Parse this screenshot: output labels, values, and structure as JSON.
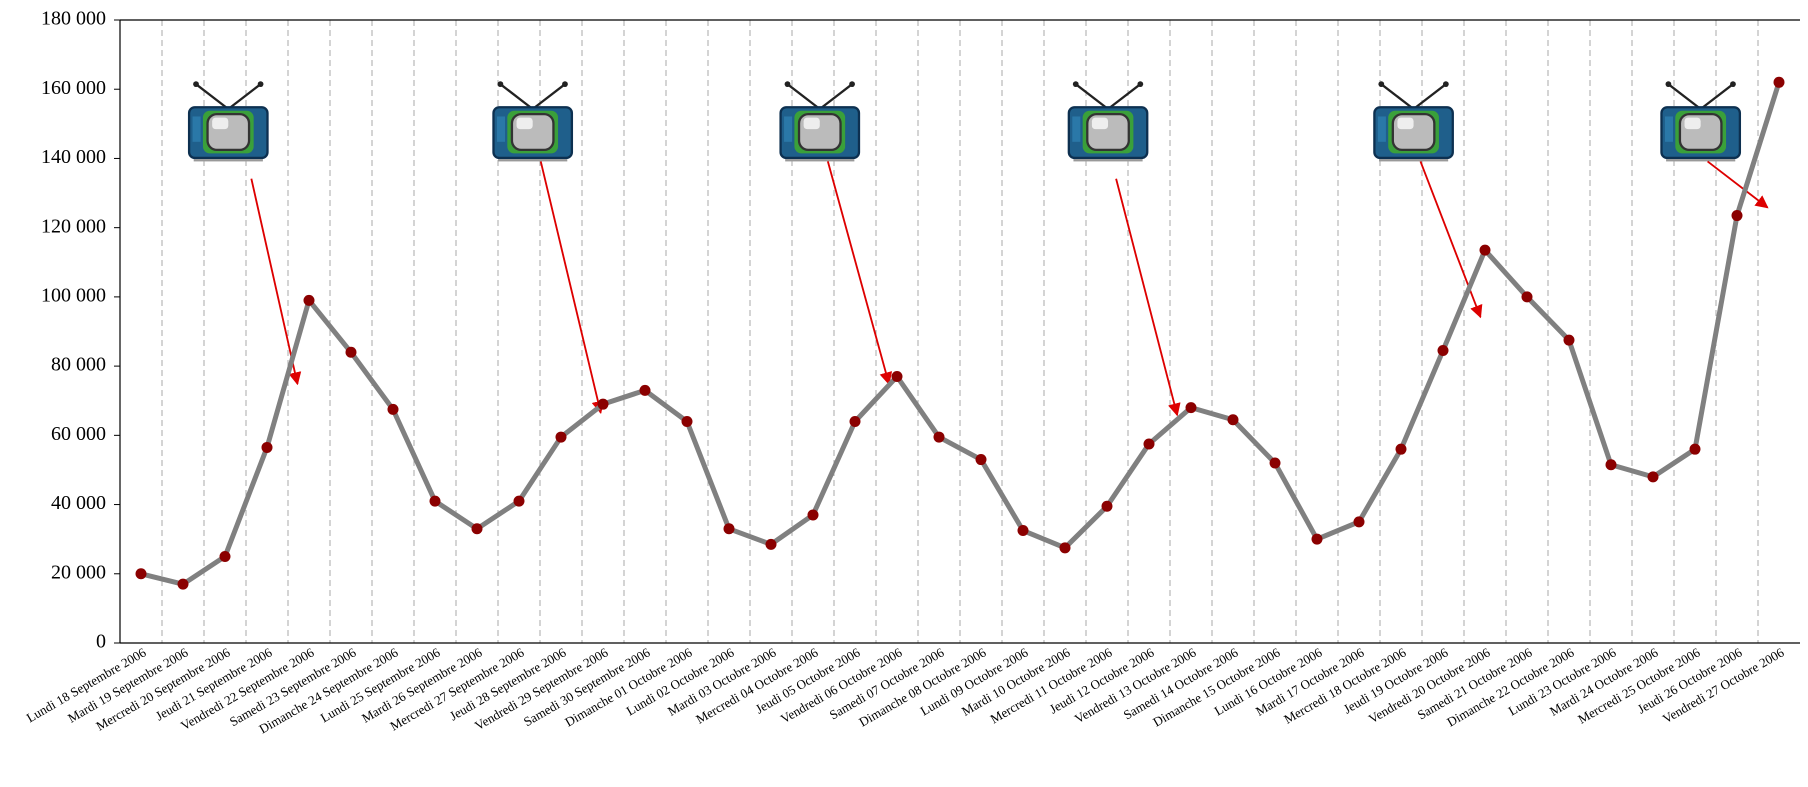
{
  "chart_data": {
    "type": "line",
    "categories": [
      "Lundi 18 Septembre 2006",
      "Mardi 19 Septembre 2006",
      "Mercredi 20 Septembre 2006",
      "Jeudi 21 Septembre 2006",
      "Vendredi 22 Septembre 2006",
      "Samedi 23 Septembre 2006",
      "Dimanche 24 Septembre 2006",
      "Lundi 25 Septembre 2006",
      "Mardi 26 Septembre 2006",
      "Mercredi 27 Septembre 2006",
      "Jeudi 28 Septembre 2006",
      "Vendredi 29 Septembre 2006",
      "Samedi 30 Septembre 2006",
      "Dimanche 01 Octobre 2006",
      "Lundi 02 Octobre 2006",
      "Mardi 03 Octobre 2006",
      "Mercredi 04 Octobre 2006",
      "Jeudi 05 Octobre 2006",
      "Vendredi 06 Octobre 2006",
      "Samedi 07 Octobre 2006",
      "Dimanche 08 Octobre 2006",
      "Lundi 09 Octobre 2006",
      "Mardi 10 Octobre 2006",
      "Mercredi 11 Octobre 2006",
      "Jeudi 12 Octobre 2006",
      "Vendredi 13 Octobre 2006",
      "Samedi 14 Octobre 2006",
      "Dimanche 15 Octobre 2006",
      "Lundi 16 Octobre 2006",
      "Mardi 17 Octobre 2006",
      "Mercredi 18 Octobre 2006",
      "Jeudi 19 Octobre 2006",
      "Vendredi 20 Octobre 2006",
      "Samedi 21 Octobre 2006",
      "Dimanche 22 Octobre 2006",
      "Lundi 23 Octobre 2006",
      "Mardi 24 Octobre 2006",
      "Mercredi 25 Octobre 2006",
      "Jeudi 26 Octobre 2006",
      "Vendredi 27 Octobre 2006"
    ],
    "values": [
      20000,
      17000,
      25000,
      56500,
      99000,
      84000,
      67500,
      41000,
      33000,
      41000,
      59500,
      69000,
      73000,
      64000,
      33000,
      28500,
      37000,
      64000,
      77000,
      59500,
      53000,
      32500,
      27500,
      39500,
      57500,
      68000,
      64500,
      52000,
      30000,
      35000,
      56000,
      84500,
      113500,
      100000,
      87500,
      51500,
      48000,
      56000,
      123500,
      162000
    ],
    "color": "#808080",
    "marker_color": "#8b0000",
    "ylim": [
      0,
      180000
    ],
    "yticks": [
      0,
      {
        "value": 20000,
        "label": "20 000"
      },
      {
        "value": 40000,
        "label": "40 000"
      },
      {
        "value": 60000,
        "label": "60 000"
      },
      {
        "value": 80000,
        "label": "80 000"
      },
      {
        "value": 100000,
        "label": "100 000"
      },
      {
        "value": 120000,
        "label": "120 000"
      },
      {
        "value": 140000,
        "label": "140 000"
      },
      {
        "value": 160000,
        "label": "160 000"
      },
      {
        "value": 180000,
        "label": "180 000"
      }
    ],
    "grid": true
  }
}
